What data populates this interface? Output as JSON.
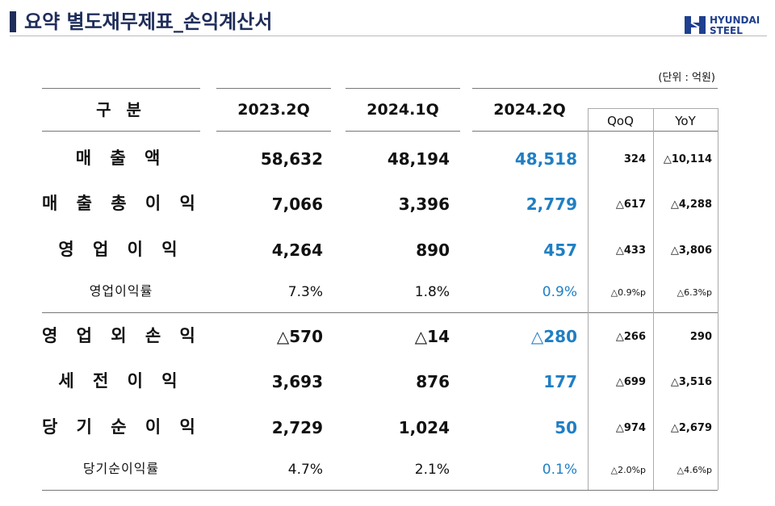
{
  "header": {
    "title": "요약 별도재무제표_손익계산서",
    "logo": [
      "HYUNDAI",
      "STEEL"
    ]
  },
  "unit": "(단위 : 억원)",
  "table": {
    "columns": [
      "구 분",
      "2023.2Q",
      "2024.1Q",
      "2024.2Q",
      "QoQ",
      "YoY"
    ],
    "rows": [
      [
        "매 출 액",
        "58,632",
        "48,194",
        "48,518",
        "324",
        "△10,114"
      ],
      [
        "매 출 총 이 익",
        "7,066",
        "3,396",
        "2,779",
        "△617",
        "△4,288"
      ],
      [
        "영 업 이 익",
        "4,264",
        "890",
        "457",
        "△433",
        "△3,806"
      ],
      [
        "영업이익률",
        "7.3%",
        "1.8%",
        "0.9%",
        "△0.9%p",
        "△6.3%p"
      ],
      [
        "영 업 외 손 익",
        "△570",
        "△14",
        "△280",
        "△266",
        "290"
      ],
      [
        "세 전 이 익",
        "3,693",
        "876",
        "177",
        "△699",
        "△3,516"
      ],
      [
        "당 기 순 이 익",
        "2,729",
        "1,024",
        "50",
        "△974",
        "△2,679"
      ],
      [
        "당기순이익률",
        "4.7%",
        "2.1%",
        "0.1%",
        "△2.0%p",
        "△4.6%p"
      ]
    ]
  }
}
